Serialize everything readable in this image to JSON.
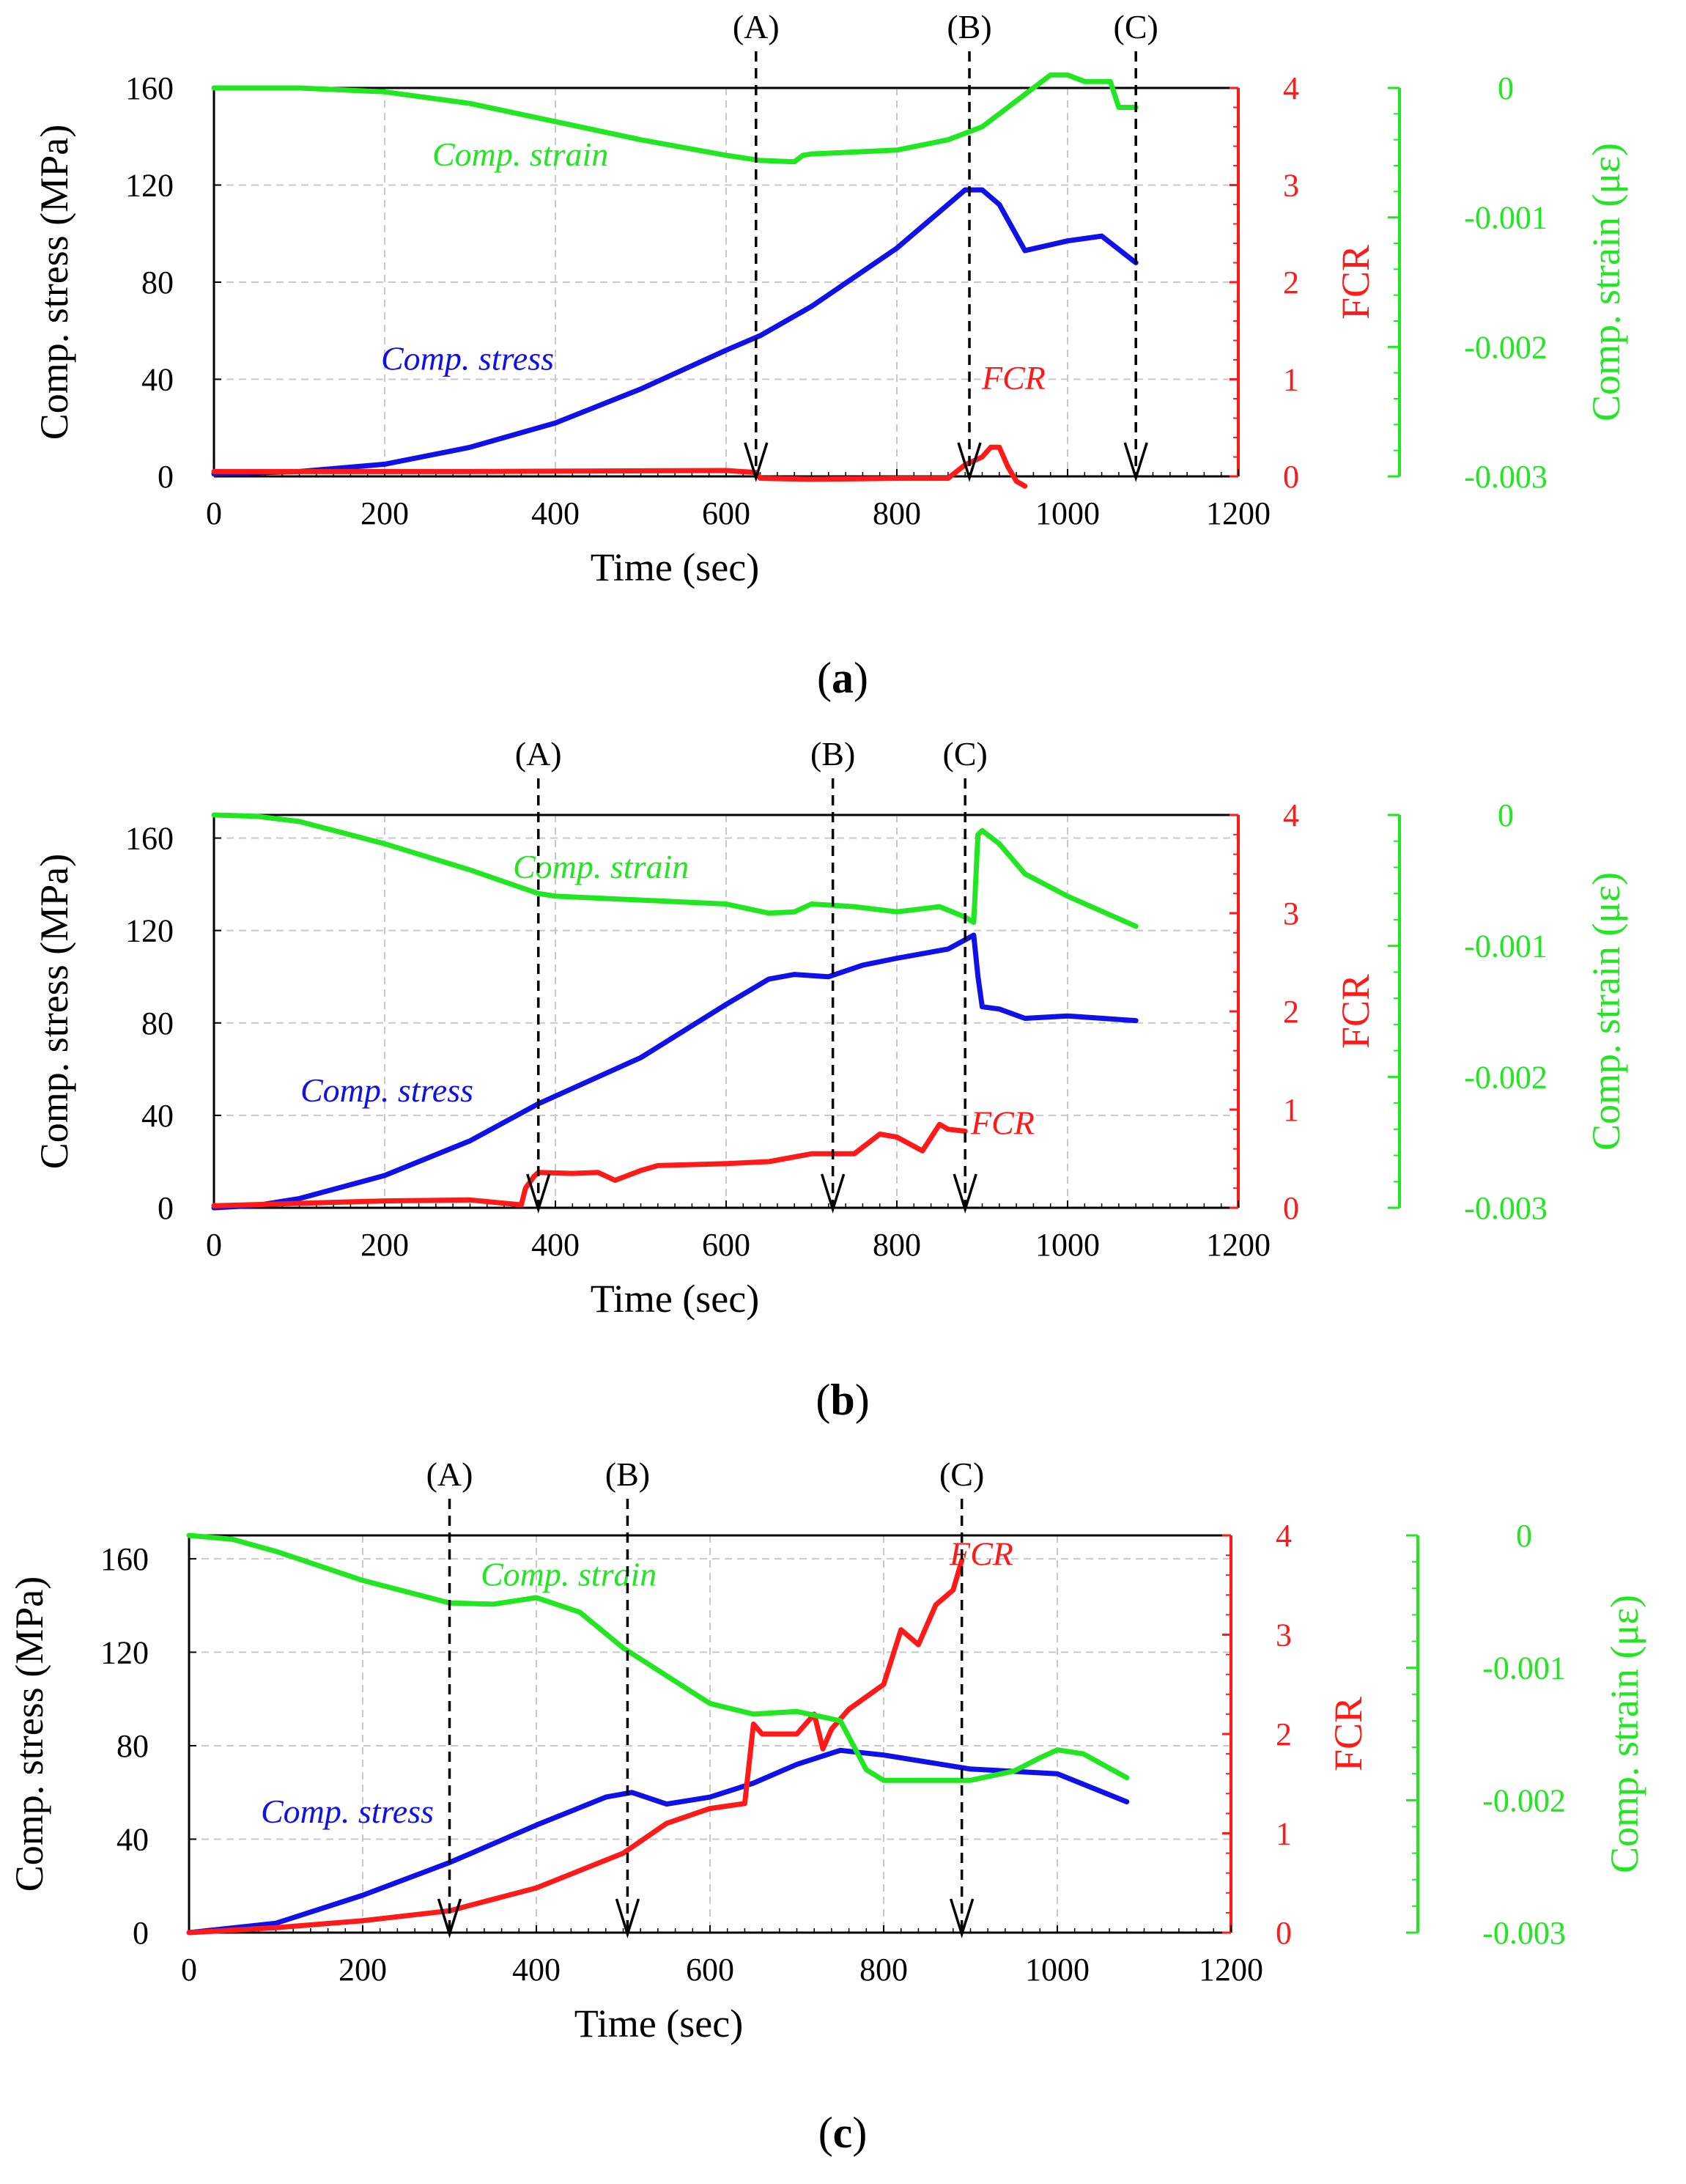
{
  "figure": {
    "colors": {
      "stress": "#1010e8",
      "fcr": "#ff1a1a",
      "strain": "#22e622",
      "axis": "#000000",
      "grid": "#c8c8c8",
      "marker": "#000000"
    },
    "panels": [
      {
        "caption_label": "a",
        "caption_open": "(",
        "caption_close": ")"
      },
      {
        "caption_label": "b",
        "caption_open": "(",
        "caption_close": ")"
      },
      {
        "caption_label": "c",
        "caption_open": "(",
        "caption_close": ")"
      }
    ]
  },
  "chart_data": [
    {
      "type": "line",
      "panel": "a",
      "xlabel": "Time (sec)",
      "ylabel": "Comp. stress (MPa)",
      "y2label": "FCR",
      "y3label": "Comp. strain (με)",
      "xlim": [
        0,
        1200
      ],
      "ylim": [
        0,
        160
      ],
      "y2lim": [
        0,
        4
      ],
      "y3lim": [
        -0.003,
        0
      ],
      "xticks": [
        "0",
        "200",
        "400",
        "600",
        "800",
        "1000",
        "1200"
      ],
      "yticks": [
        "0",
        "40",
        "80",
        "120",
        "160"
      ],
      "y2ticks": [
        "0",
        "1",
        "2",
        "3",
        "4"
      ],
      "y3ticks": [
        "-0.003",
        "-0.002",
        "-0.001",
        "0"
      ],
      "series": [
        {
          "name": "Comp. stress",
          "axis": "y",
          "label": "Comp. stress",
          "x": [
            0,
            100,
            200,
            300,
            400,
            500,
            600,
            640,
            700,
            800,
            880,
            900,
            920,
            950,
            1000,
            1040,
            1080
          ],
          "values": [
            1,
            2,
            5,
            12,
            22,
            36,
            52,
            58,
            70,
            94,
            118,
            118,
            112,
            93,
            97,
            99,
            88
          ]
        },
        {
          "name": "FCR",
          "axis": "y2",
          "label": "FCR",
          "x": [
            0,
            300,
            600,
            635,
            640,
            700,
            800,
            860,
            870,
            880,
            900,
            910,
            920,
            930,
            940,
            950
          ],
          "values": [
            0.05,
            0.05,
            0.06,
            0.04,
            -0.02,
            -0.03,
            -0.02,
            -0.02,
            0.05,
            0.12,
            0.2,
            0.3,
            0.3,
            0.1,
            -0.05,
            -0.1
          ]
        },
        {
          "name": "Comp. strain",
          "axis": "y3",
          "label": "Comp. strain",
          "x": [
            0,
            100,
            200,
            300,
            400,
            500,
            600,
            640,
            680,
            690,
            700,
            800,
            860,
            900,
            950,
            980,
            1000,
            1020,
            1050,
            1060,
            1080
          ],
          "values": [
            0,
            0,
            -3e-05,
            -0.00012,
            -0.00026,
            -0.0004,
            -0.00052,
            -0.00056,
            -0.00057,
            -0.00052,
            -0.00051,
            -0.00048,
            -0.0004,
            -0.0003,
            -5e-05,
            0.0001,
            0.0001,
            5e-05,
            5e-05,
            -0.00015,
            -0.00015
          ]
        }
      ],
      "markers": [
        {
          "label": "(A)",
          "x": 635
        },
        {
          "label": "(B)",
          "x": 885
        },
        {
          "label": "(C)",
          "x": 1080
        }
      ]
    },
    {
      "type": "line",
      "panel": "b",
      "xlabel": "Time (sec)",
      "ylabel": "Comp. stress (MPa)",
      "y2label": "FCR",
      "y3label": "Comp. strain (με)",
      "xlim": [
        0,
        1200
      ],
      "ylim": [
        0,
        170
      ],
      "y2lim": [
        0,
        4
      ],
      "y3lim": [
        -0.003,
        0
      ],
      "xticks": [
        "0",
        "200",
        "400",
        "600",
        "800",
        "1000",
        "1200"
      ],
      "yticks": [
        "0",
        "40",
        "80",
        "120",
        "160"
      ],
      "y2ticks": [
        "0",
        "1",
        "2",
        "3",
        "4"
      ],
      "y3ticks": [
        "-0.003",
        "-0.002",
        "-0.001",
        "0"
      ],
      "series": [
        {
          "name": "Comp. stress",
          "axis": "y",
          "label": "Comp. stress",
          "x": [
            0,
            50,
            100,
            200,
            300,
            380,
            500,
            600,
            650,
            680,
            720,
            760,
            800,
            860,
            890,
            895,
            900,
            920,
            950,
            1000,
            1080
          ],
          "values": [
            0,
            1,
            4,
            14,
            29,
            45,
            65,
            88,
            99,
            101,
            100,
            105,
            108,
            112,
            118,
            100,
            87,
            86,
            82,
            83,
            81
          ]
        },
        {
          "name": "FCR",
          "axis": "y2",
          "label": "FCR",
          "x": [
            0,
            200,
            300,
            360,
            365,
            375,
            380,
            420,
            450,
            470,
            500,
            520,
            600,
            650,
            700,
            750,
            780,
            800,
            830,
            850,
            860,
            880
          ],
          "values": [
            0.02,
            0.07,
            0.08,
            0.03,
            0.2,
            0.32,
            0.36,
            0.35,
            0.36,
            0.28,
            0.38,
            0.43,
            0.45,
            0.47,
            0.55,
            0.55,
            0.75,
            0.72,
            0.58,
            0.85,
            0.8,
            0.78
          ]
        },
        {
          "name": "Comp. strain",
          "axis": "y3",
          "label": "Comp. strain",
          "x": [
            0,
            50,
            100,
            200,
            300,
            380,
            400,
            500,
            600,
            650,
            680,
            700,
            750,
            800,
            850,
            880,
            890,
            895,
            900,
            920,
            950,
            1000,
            1080
          ],
          "values": [
            0,
            -1e-05,
            -5e-05,
            -0.00022,
            -0.00042,
            -0.0006,
            -0.00062,
            -0.00065,
            -0.00068,
            -0.00075,
            -0.00074,
            -0.00068,
            -0.0007,
            -0.00074,
            -0.0007,
            -0.00078,
            -0.00082,
            -0.00015,
            -0.00012,
            -0.00022,
            -0.00045,
            -0.00062,
            -0.00085
          ]
        }
      ],
      "markers": [
        {
          "label": "(A)",
          "x": 380
        },
        {
          "label": "(B)",
          "x": 725
        },
        {
          "label": "(C)",
          "x": 880
        }
      ]
    },
    {
      "type": "line",
      "panel": "c",
      "xlabel": "Time (sec)",
      "ylabel": "Comp. stress (MPa)",
      "y2label": "FCR",
      "y3label": "Comp. strain (με)",
      "xlim": [
        0,
        1200
      ],
      "ylim": [
        0,
        170
      ],
      "y2lim": [
        0,
        4
      ],
      "y3lim": [
        -0.003,
        0
      ],
      "xticks": [
        "0",
        "200",
        "400",
        "600",
        "800",
        "1000",
        "1200"
      ],
      "yticks": [
        "0",
        "40",
        "80",
        "120",
        "160"
      ],
      "y2ticks": [
        "0",
        "1",
        "2",
        "3",
        "4"
      ],
      "y3ticks": [
        "-0.003",
        "-0.002",
        "-0.001",
        "0"
      ],
      "series": [
        {
          "name": "Comp. stress",
          "axis": "y",
          "label": "Comp. stress",
          "x": [
            0,
            100,
            200,
            300,
            400,
            480,
            510,
            550,
            600,
            650,
            700,
            750,
            800,
            900,
            1000,
            1080
          ],
          "values": [
            0,
            4,
            16,
            30,
            46,
            58,
            60,
            55,
            58,
            64,
            72,
            78,
            76,
            70,
            68,
            56
          ]
        },
        {
          "name": "FCR",
          "axis": "y2",
          "label": "FCR",
          "x": [
            0,
            100,
            200,
            300,
            400,
            500,
            550,
            600,
            640,
            650,
            660,
            700,
            720,
            730,
            740,
            760,
            800,
            820,
            840,
            860,
            880,
            890
          ],
          "values": [
            0,
            0.05,
            0.12,
            0.22,
            0.45,
            0.8,
            1.1,
            1.25,
            1.3,
            2.1,
            2.0,
            2.0,
            2.2,
            1.85,
            2.05,
            2.25,
            2.5,
            3.05,
            2.9,
            3.3,
            3.45,
            3.75
          ]
        },
        {
          "name": "Comp. strain",
          "axis": "y3",
          "label": "Comp. strain",
          "x": [
            0,
            50,
            100,
            200,
            300,
            350,
            400,
            450,
            500,
            600,
            650,
            700,
            750,
            780,
            800,
            900,
            950,
            980,
            1000,
            1030,
            1080
          ],
          "values": [
            0,
            -3e-05,
            -0.00012,
            -0.00034,
            -0.00051,
            -0.00052,
            -0.00047,
            -0.00058,
            -0.00085,
            -0.00127,
            -0.00135,
            -0.00133,
            -0.0014,
            -0.00177,
            -0.00185,
            -0.00185,
            -0.00178,
            -0.00168,
            -0.00162,
            -0.00165,
            -0.00183
          ]
        }
      ],
      "markers": [
        {
          "label": "(A)",
          "x": 300
        },
        {
          "label": "(B)",
          "x": 505
        },
        {
          "label": "(C)",
          "x": 890
        }
      ]
    }
  ]
}
